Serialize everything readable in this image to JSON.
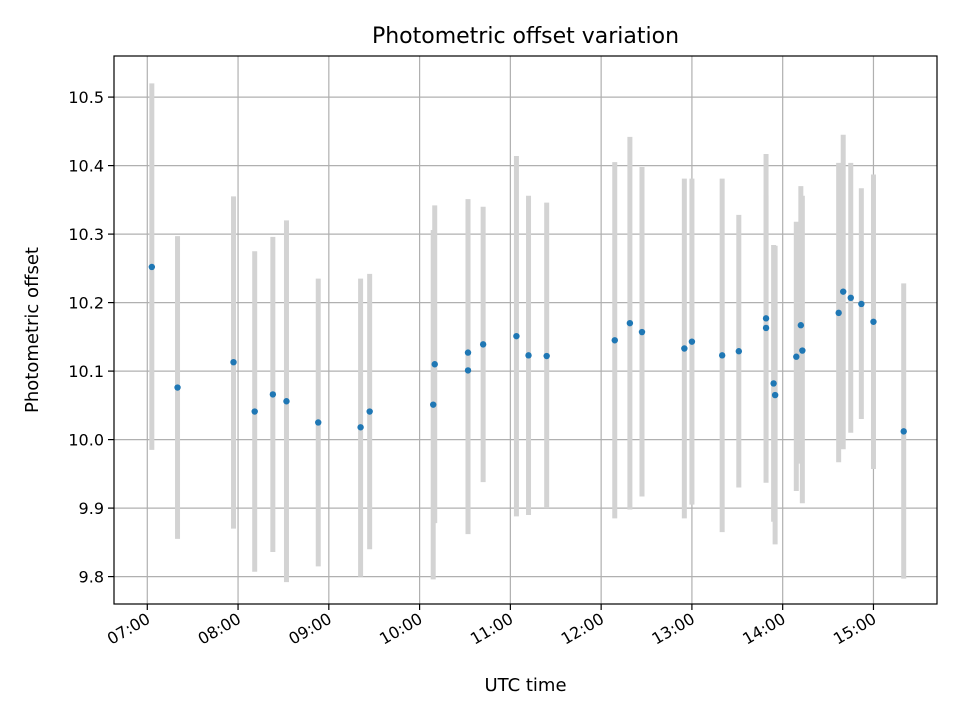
{
  "chart_data": {
    "type": "scatter",
    "title": "Photometric offset variation",
    "xlabel": "UTC time",
    "ylabel": "Photometric offset",
    "grid": true,
    "xlim": [
      "06:38",
      "15:42"
    ],
    "ylim": [
      9.76,
      10.56
    ],
    "x_ticks": [
      "07:00",
      "08:00",
      "09:00",
      "10:00",
      "11:00",
      "12:00",
      "13:00",
      "14:00",
      "15:00"
    ],
    "y_ticks": [
      9.8,
      9.9,
      10.0,
      10.1,
      10.2,
      10.3,
      10.4,
      10.5
    ],
    "y_tick_labels": [
      "9.8",
      "9.9",
      "10.0",
      "10.1",
      "10.2",
      "10.3",
      "10.4",
      "10.5"
    ],
    "point_color": "#1f77b4",
    "errorbar_color": "#d3d3d3",
    "points": [
      {
        "x": "07:03",
        "y": 10.252,
        "low": 9.985,
        "high": 10.52
      },
      {
        "x": "07:20",
        "y": 10.076,
        "low": 9.855,
        "high": 10.297
      },
      {
        "x": "07:57",
        "y": 10.113,
        "low": 9.87,
        "high": 10.355
      },
      {
        "x": "08:11",
        "y": 10.041,
        "low": 9.807,
        "high": 10.275
      },
      {
        "x": "08:23",
        "y": 10.066,
        "low": 9.836,
        "high": 10.296
      },
      {
        "x": "08:32",
        "y": 10.056,
        "low": 9.792,
        "high": 10.32
      },
      {
        "x": "08:53",
        "y": 10.025,
        "low": 9.815,
        "high": 10.235
      },
      {
        "x": "09:21",
        "y": 10.018,
        "low": 9.8,
        "high": 10.235
      },
      {
        "x": "09:27",
        "y": 10.041,
        "low": 9.84,
        "high": 10.242
      },
      {
        "x": "10:09",
        "y": 10.051,
        "low": 9.796,
        "high": 10.306
      },
      {
        "x": "10:10",
        "y": 10.11,
        "low": 9.878,
        "high": 10.342
      },
      {
        "x": "10:32",
        "y": 10.101,
        "low": 9.862,
        "high": 10.34
      },
      {
        "x": "10:32",
        "y": 10.127,
        "low": 9.903,
        "high": 10.351
      },
      {
        "x": "10:42",
        "y": 10.139,
        "low": 9.938,
        "high": 10.34
      },
      {
        "x": "11:04",
        "y": 10.151,
        "low": 9.888,
        "high": 10.414
      },
      {
        "x": "11:12",
        "y": 10.123,
        "low": 9.89,
        "high": 10.356
      },
      {
        "x": "11:24",
        "y": 10.122,
        "low": 9.9,
        "high": 10.346
      },
      {
        "x": "12:09",
        "y": 10.145,
        "low": 9.885,
        "high": 10.405
      },
      {
        "x": "12:19",
        "y": 10.17,
        "low": 9.898,
        "high": 10.442
      },
      {
        "x": "12:27",
        "y": 10.157,
        "low": 9.917,
        "high": 10.398
      },
      {
        "x": "12:55",
        "y": 10.133,
        "low": 9.885,
        "high": 10.381
      },
      {
        "x": "13:00",
        "y": 10.143,
        "low": 9.905,
        "high": 10.381
      },
      {
        "x": "13:20",
        "y": 10.123,
        "low": 9.865,
        "high": 10.381
      },
      {
        "x": "13:31",
        "y": 10.129,
        "low": 9.93,
        "high": 10.328
      },
      {
        "x": "13:49",
        "y": 10.177,
        "low": 9.937,
        "high": 10.417
      },
      {
        "x": "13:49",
        "y": 10.163,
        "low": 9.97,
        "high": 10.356
      },
      {
        "x": "13:54",
        "y": 10.082,
        "low": 9.88,
        "high": 10.284
      },
      {
        "x": "13:55",
        "y": 10.065,
        "low": 9.847,
        "high": 10.283
      },
      {
        "x": "14:09",
        "y": 10.121,
        "low": 9.925,
        "high": 10.318
      },
      {
        "x": "14:12",
        "y": 10.167,
        "low": 9.965,
        "high": 10.37
      },
      {
        "x": "14:13",
        "y": 10.13,
        "low": 9.907,
        "high": 10.356
      },
      {
        "x": "14:37",
        "y": 10.185,
        "low": 9.967,
        "high": 10.404
      },
      {
        "x": "14:40",
        "y": 10.216,
        "low": 9.986,
        "high": 10.445
      },
      {
        "x": "14:45",
        "y": 10.207,
        "low": 10.01,
        "high": 10.404
      },
      {
        "x": "14:52",
        "y": 10.198,
        "low": 10.03,
        "high": 10.367
      },
      {
        "x": "15:00",
        "y": 10.172,
        "low": 9.957,
        "high": 10.387
      },
      {
        "x": "15:20",
        "y": 10.012,
        "low": 9.797,
        "high": 10.228
      }
    ]
  }
}
